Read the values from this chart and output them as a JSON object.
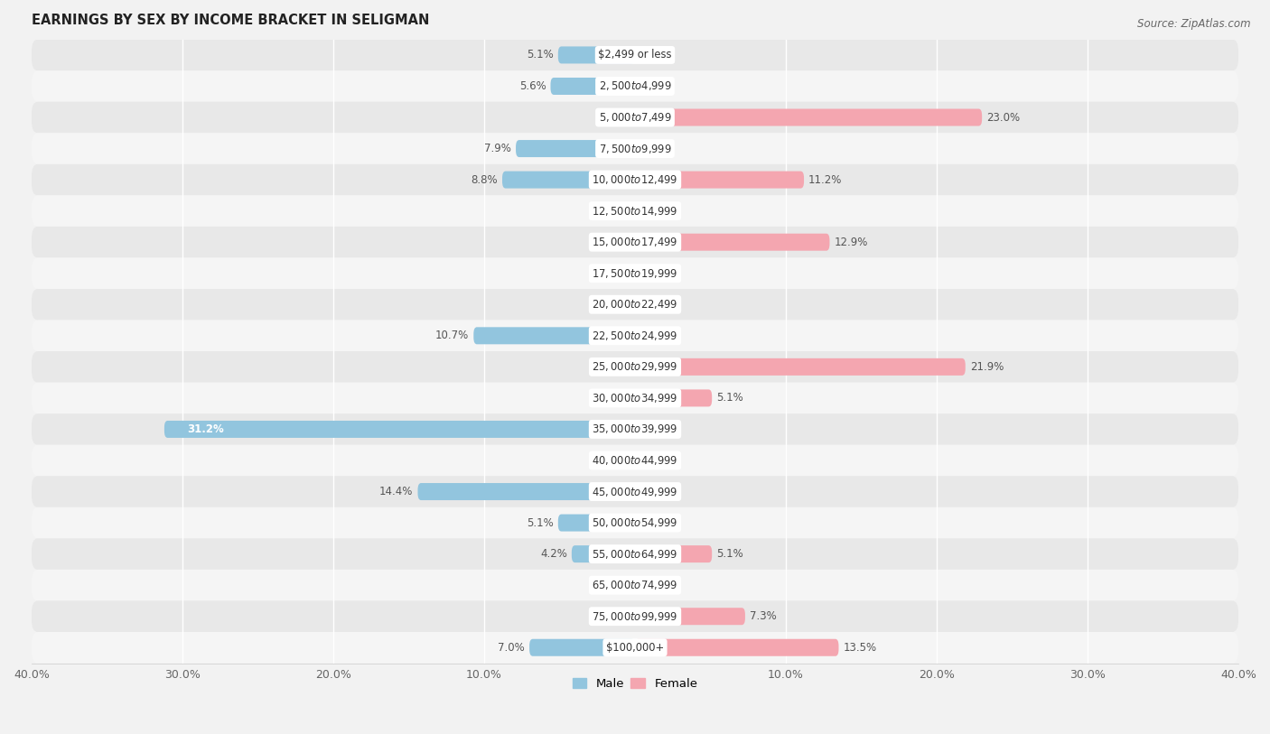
{
  "title": "EARNINGS BY SEX BY INCOME BRACKET IN SELIGMAN",
  "source": "Source: ZipAtlas.com",
  "categories": [
    "$2,499 or less",
    "$2,500 to $4,999",
    "$5,000 to $7,499",
    "$7,500 to $9,999",
    "$10,000 to $12,499",
    "$12,500 to $14,999",
    "$15,000 to $17,499",
    "$17,500 to $19,999",
    "$20,000 to $22,499",
    "$22,500 to $24,999",
    "$25,000 to $29,999",
    "$30,000 to $34,999",
    "$35,000 to $39,999",
    "$40,000 to $44,999",
    "$45,000 to $49,999",
    "$50,000 to $54,999",
    "$55,000 to $64,999",
    "$65,000 to $74,999",
    "$75,000 to $99,999",
    "$100,000+"
  ],
  "male": [
    5.1,
    5.6,
    0.0,
    7.9,
    8.8,
    0.0,
    0.0,
    0.0,
    0.0,
    10.7,
    0.0,
    0.0,
    31.2,
    0.0,
    14.4,
    5.1,
    4.2,
    0.0,
    0.0,
    7.0
  ],
  "female": [
    0.0,
    0.0,
    23.0,
    0.0,
    11.2,
    0.0,
    12.9,
    0.0,
    0.0,
    0.0,
    21.9,
    5.1,
    0.0,
    0.0,
    0.0,
    0.0,
    5.1,
    0.0,
    7.3,
    13.5
  ],
  "male_color": "#92c5de",
  "female_color": "#f4a6b0",
  "male_label": "Male",
  "female_label": "Female",
  "xlim": 40.0,
  "background_color": "#f2f2f2",
  "row_colors": [
    "#e8e8e8",
    "#f5f5f5"
  ],
  "title_fontsize": 10.5,
  "label_fontsize": 8.5,
  "tick_fontsize": 9,
  "source_fontsize": 8.5
}
